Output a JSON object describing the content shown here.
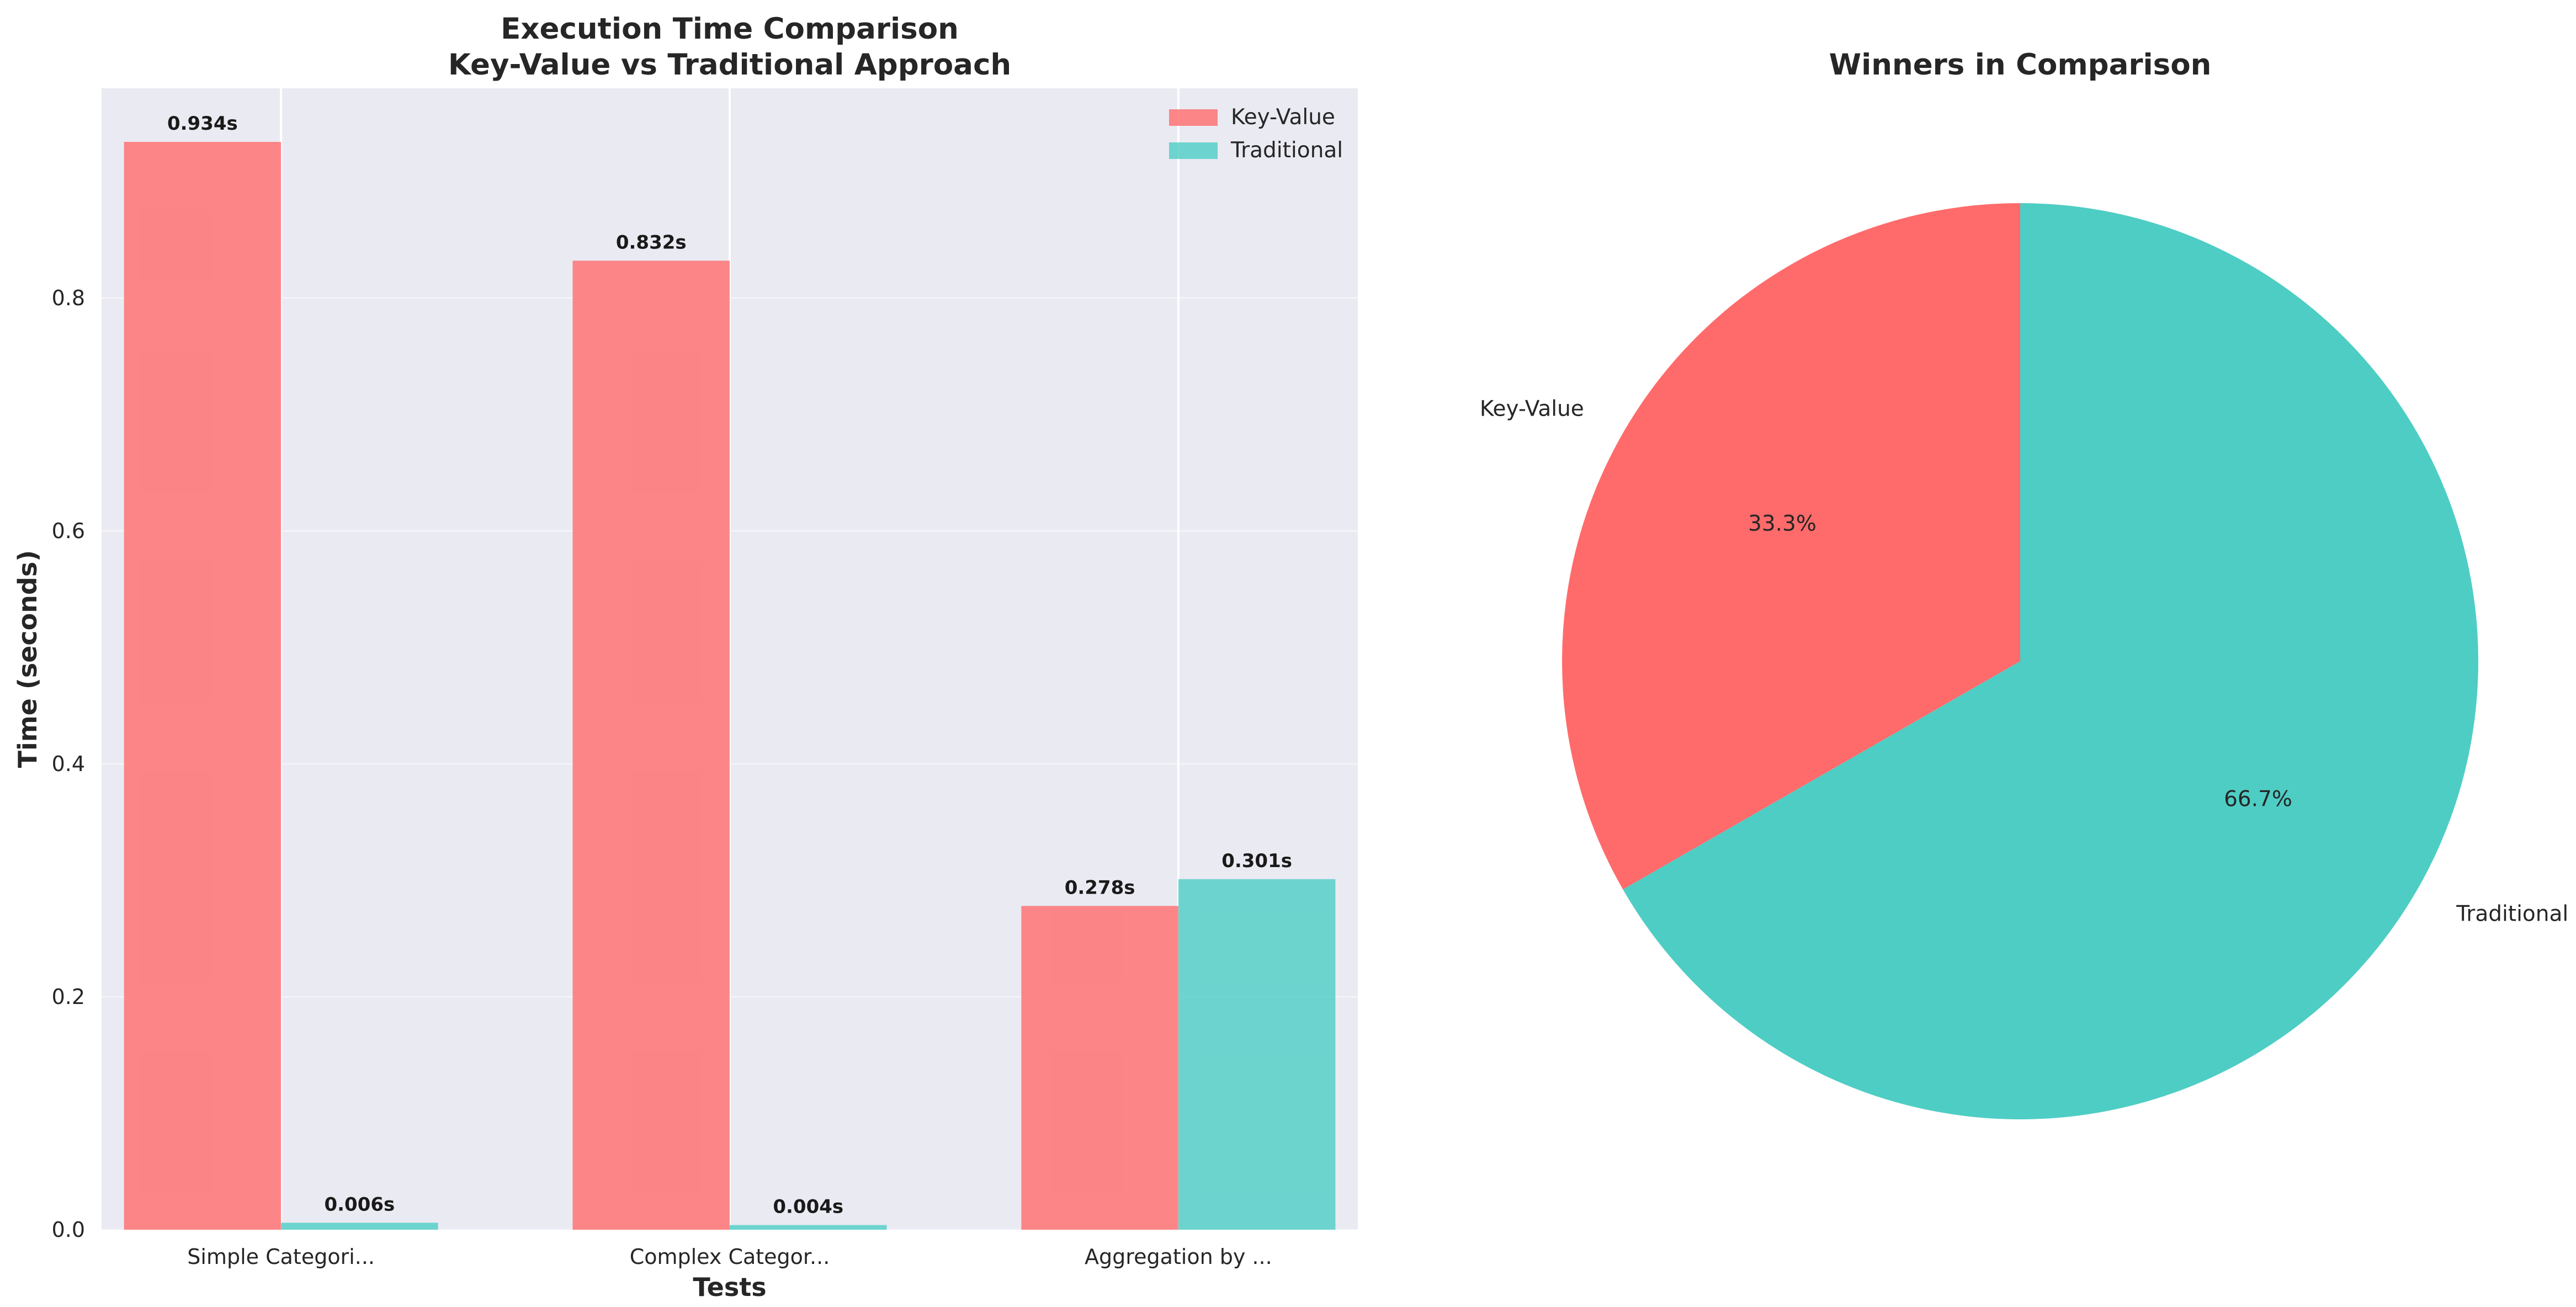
{
  "chart_data": [
    {
      "type": "bar",
      "title": "Execution Time Comparison\nKey-Value vs Traditional Approach",
      "xlabel": "Tests",
      "ylabel": "Time (seconds)",
      "categories": [
        "Simple Categori...",
        "Complex Categor...",
        "Aggregation by ..."
      ],
      "series": [
        {
          "name": "Key-Value",
          "values": [
            0.934,
            0.832,
            0.278
          ],
          "labels": [
            "0.934s",
            "0.832s",
            "0.278s"
          ],
          "color": "#FF6B6B"
        },
        {
          "name": "Traditional",
          "values": [
            0.006,
            0.004,
            0.301
          ],
          "labels": [
            "0.006s",
            "0.004s",
            "0.301s"
          ],
          "color": "#4ECDC4"
        }
      ],
      "ylim": [
        0,
        0.98
      ],
      "yticks": [
        0.0,
        0.2,
        0.4,
        0.6,
        0.8
      ],
      "ytick_labels": [
        "0.0",
        "0.2",
        "0.4",
        "0.6",
        "0.8"
      ],
      "grid": true,
      "legend": "top-right"
    },
    {
      "type": "pie",
      "title": "Winners in Comparison",
      "slices": [
        {
          "label": "Key-Value",
          "value": 33.3,
          "pct_label": "33.3%",
          "color": "#FF6B6B"
        },
        {
          "label": "Traditional",
          "value": 66.7,
          "pct_label": "66.7%",
          "color": "#4ECDC4"
        }
      ]
    }
  ]
}
